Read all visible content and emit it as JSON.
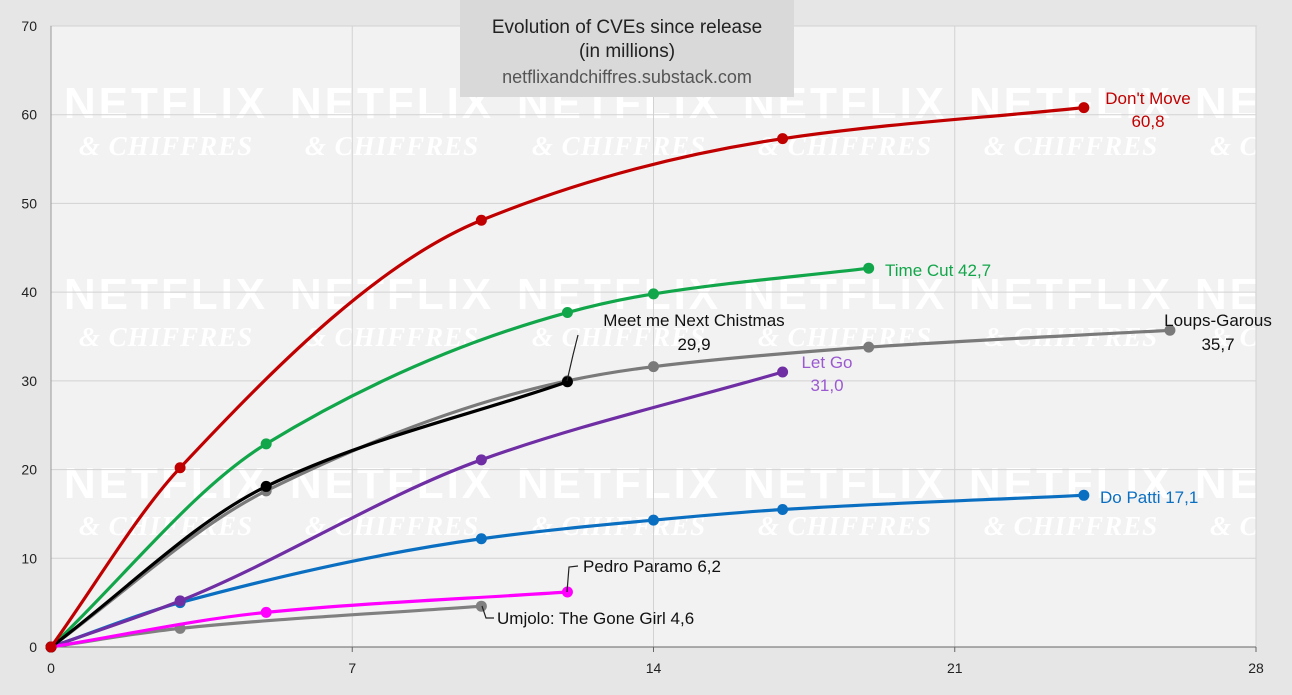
{
  "chart_data": {
    "type": "line",
    "title": "Evolution of CVEs since release",
    "subtitle": "(in millions)",
    "source": "netflixandchiffres.substack.com",
    "watermark": {
      "line1": "NETFLIX",
      "line2": "& CHIFFRES"
    },
    "xlim": [
      0,
      28
    ],
    "ylim": [
      0,
      70
    ],
    "x_ticks": [
      0,
      7,
      14,
      21,
      28
    ],
    "y_ticks": [
      0,
      10,
      20,
      30,
      40,
      50,
      60,
      70
    ],
    "grid": true,
    "series": [
      {
        "name": "Don't Move",
        "value_label": "60,8",
        "color": "#c00000",
        "x": [
          0,
          3,
          10,
          17,
          24
        ],
        "y": [
          0,
          20.2,
          48.1,
          57.3,
          60.8
        ]
      },
      {
        "name": "Time Cut",
        "value_label": "42,7",
        "color": "#12a64a",
        "x": [
          0,
          5,
          12,
          14,
          19
        ],
        "y": [
          0,
          22.9,
          37.7,
          39.8,
          42.7
        ]
      },
      {
        "name": "Loups-Garous",
        "value_label": "35,7",
        "color": "#7a7a7a",
        "x": [
          0,
          5,
          12,
          14,
          19,
          26
        ],
        "y": [
          0,
          17.6,
          30.0,
          31.6,
          33.8,
          35.7
        ]
      },
      {
        "name": "Meet me Next Chistmas",
        "value_label": "29,9",
        "color": "#000000",
        "x": [
          0,
          5,
          12
        ],
        "y": [
          0,
          18.1,
          29.9
        ]
      },
      {
        "name": "Let Go",
        "value_label": "31,0",
        "color": "#6f2ea3",
        "x": [
          0,
          3,
          10,
          17
        ],
        "y": [
          0,
          5.2,
          21.1,
          31.0
        ]
      },
      {
        "name": "Do Patti",
        "value_label": "17,1",
        "color": "#0b6fc1",
        "x": [
          0,
          3,
          10,
          14,
          17,
          24
        ],
        "y": [
          0,
          5.0,
          12.2,
          14.3,
          15.5,
          17.1
        ]
      },
      {
        "name": "Pedro Paramo",
        "value_label": "6,2",
        "color": "#ff00ff",
        "x": [
          0,
          5,
          12
        ],
        "y": [
          0,
          3.9,
          6.2
        ]
      },
      {
        "name": "Umjolo: The Gone Girl",
        "value_label": "4,6",
        "color": "#808080",
        "x": [
          0,
          3,
          10
        ],
        "y": [
          0,
          2.1,
          4.6
        ]
      }
    ],
    "labels": [
      {
        "series": "Don't Move",
        "line1": "Don't Move",
        "line2": "60,8",
        "color": "#c00000"
      },
      {
        "series": "Time Cut",
        "line1": "Time Cut 42,7",
        "color": "#12a64a"
      },
      {
        "series": "Loups-Garous",
        "line1": "Loups-Garous",
        "line2": "35,7",
        "color": "#111111"
      },
      {
        "series": "Meet me Next Chistmas",
        "line1": "Meet me Next Chistmas",
        "line2": "29,9",
        "color": "#111111"
      },
      {
        "series": "Let Go",
        "line1": "Let Go",
        "line2": "31,0",
        "color": "#9b59d0"
      },
      {
        "series": "Do Patti",
        "line1": "Do Patti 17,1",
        "color": "#0b6fc1"
      },
      {
        "series": "Pedro Paramo",
        "line1": "Pedro Paramo 6,2",
        "color": "#111111"
      },
      {
        "series": "Umjolo: The Gone Girl",
        "line1": "Umjolo: The Gone Girl 4,6",
        "color": "#111111"
      }
    ]
  }
}
